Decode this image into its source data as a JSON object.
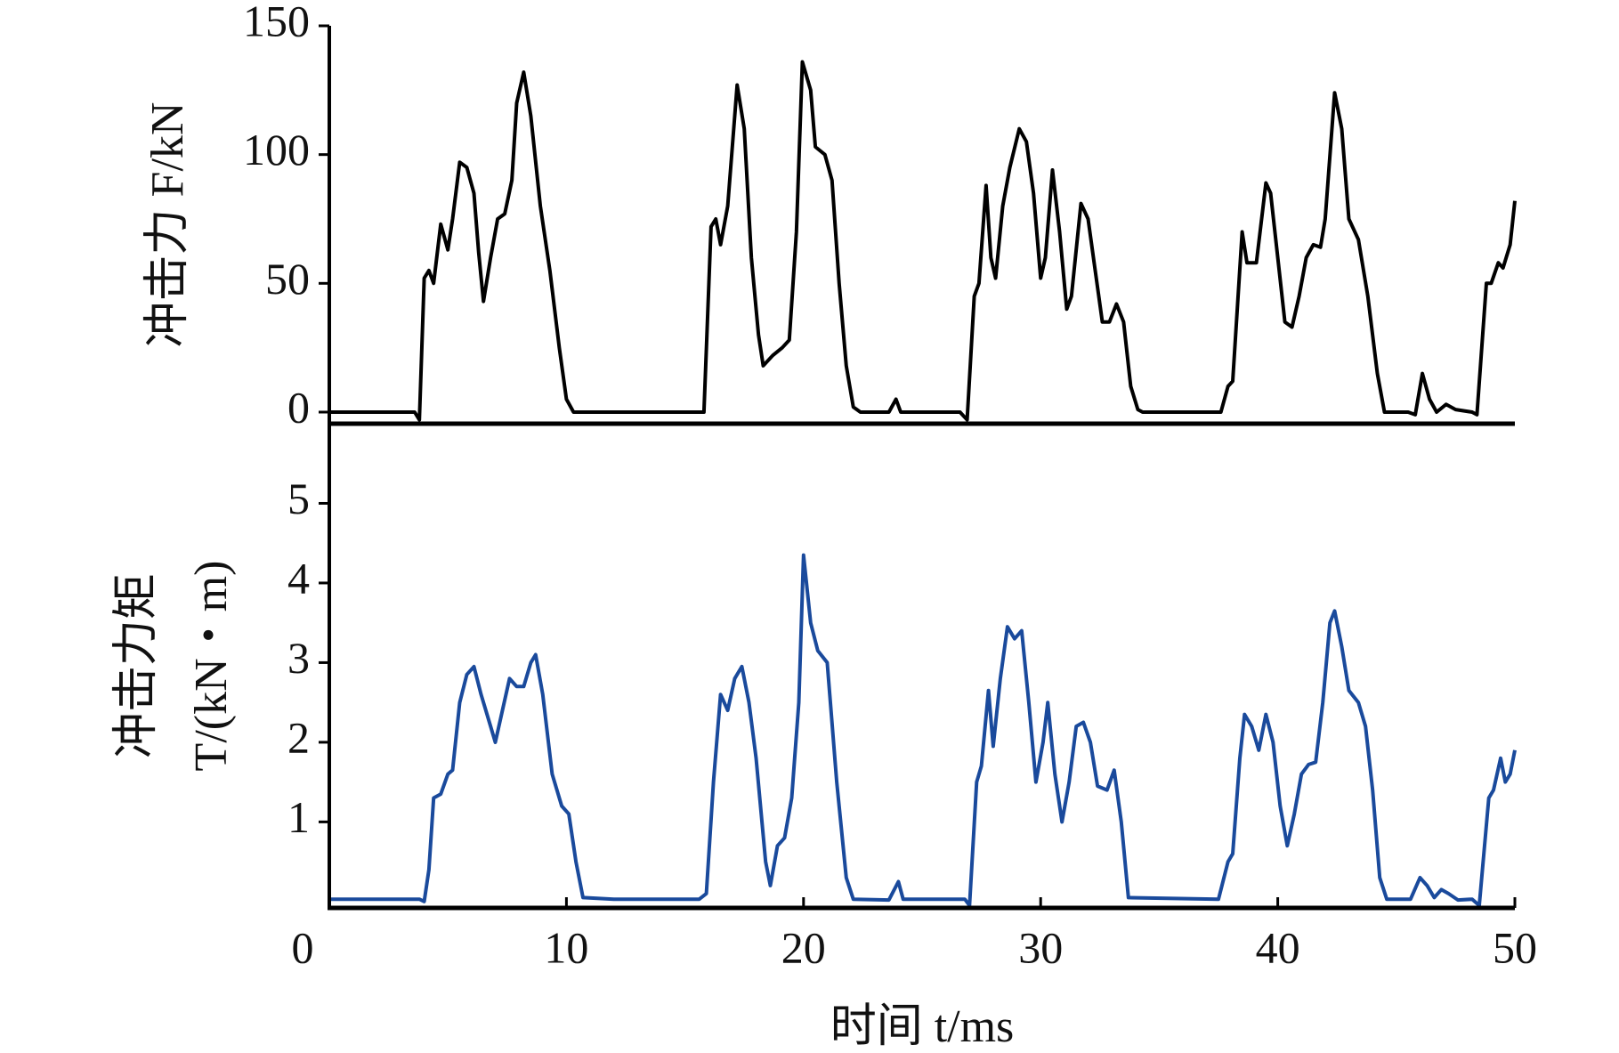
{
  "chart_data": [
    {
      "type": "line",
      "ylabel": "冲击力 F/kN",
      "xlim": [
        0,
        50
      ],
      "ylim": [
        -4.5,
        150
      ],
      "yticks": [
        0,
        50,
        100,
        150
      ],
      "series": [
        {
          "color": "#000000",
          "x": [
            0,
            1,
            2,
            3,
            3.6,
            3.8,
            4.0,
            4.2,
            4.4,
            4.7,
            5.0,
            5.2,
            5.5,
            5.8,
            6.1,
            6.3,
            6.5,
            6.8,
            7.1,
            7.4,
            7.7,
            7.9,
            8.2,
            8.5,
            8.9,
            9.3,
            9.7,
            10.0,
            10.3,
            10.6,
            12,
            14,
            15.5,
            15.8,
            16.1,
            16.3,
            16.5,
            16.8,
            17.2,
            17.5,
            17.8,
            18.1,
            18.3,
            18.7,
            19.1,
            19.4,
            19.7,
            19.95,
            20.3,
            20.5,
            20.9,
            21.2,
            21.5,
            21.8,
            22.1,
            22.4,
            23.6,
            23.9,
            24.1,
            26.6,
            26.9,
            27.2,
            27.4,
            27.7,
            27.9,
            28.1,
            28.4,
            28.7,
            29.1,
            29.4,
            29.7,
            30.0,
            30.2,
            30.5,
            30.8,
            31.1,
            31.3,
            31.7,
            32.0,
            32.3,
            32.6,
            32.9,
            33.2,
            33.5,
            33.8,
            34.1,
            34.3,
            37.6,
            37.9,
            38.1,
            38.5,
            38.7,
            39.1,
            39.5,
            39.7,
            40.0,
            40.3,
            40.6,
            40.9,
            41.2,
            41.5,
            41.8,
            42.0,
            42.4,
            42.7,
            43.0,
            43.4,
            43.8,
            44.2,
            44.5,
            45.5,
            45.8,
            46.1,
            46.4,
            46.7,
            47.1,
            47.5,
            48.2,
            48.4,
            48.8,
            49.0,
            49.3,
            49.5,
            49.8,
            50.0
          ],
          "values": [
            0,
            0,
            0,
            0,
            0,
            -3,
            52,
            55,
            50,
            73,
            63,
            75,
            97,
            95,
            85,
            62,
            43,
            60,
            75,
            77,
            90,
            120,
            132,
            115,
            80,
            55,
            25,
            5,
            0,
            0,
            0,
            0,
            0,
            0,
            72,
            75,
            65,
            80,
            127,
            110,
            60,
            30,
            18,
            22,
            25,
            28,
            70,
            136,
            125,
            103,
            100,
            90,
            50,
            18,
            2,
            0,
            0,
            5,
            0,
            0,
            -3,
            45,
            50,
            88,
            60,
            52,
            80,
            95,
            110,
            105,
            85,
            52,
            60,
            94,
            70,
            40,
            45,
            81,
            75,
            55,
            35,
            35,
            42,
            35,
            10,
            1,
            0,
            0,
            10,
            12,
            70,
            58,
            58,
            89,
            85,
            60,
            35,
            33,
            45,
            60,
            65,
            64,
            75,
            124,
            110,
            75,
            67,
            45,
            15,
            0,
            0,
            -1,
            15,
            5,
            0,
            3,
            1,
            0,
            -1,
            50,
            50,
            58,
            56,
            65,
            82
          ]
        }
      ]
    },
    {
      "type": "line",
      "ylabel": [
        "冲击力矩",
        "T/(kN・m)"
      ],
      "xlabel": "时间 t/ms",
      "xlim": [
        0,
        50
      ],
      "xticks": [
        0,
        10,
        20,
        30,
        40,
        50
      ],
      "ylim": [
        -0.08,
        6
      ],
      "yticks": [
        1,
        2,
        3,
        4,
        5
      ],
      "series": [
        {
          "color": "#1a4a9c",
          "x": [
            0,
            1,
            2,
            3,
            3.8,
            4.0,
            4.2,
            4.4,
            4.7,
            5.0,
            5.2,
            5.5,
            5.8,
            6.1,
            6.4,
            6.8,
            7.0,
            7.3,
            7.6,
            7.9,
            8.2,
            8.5,
            8.7,
            9.0,
            9.4,
            9.8,
            10.1,
            10.4,
            10.7,
            12,
            14,
            15.6,
            15.9,
            16.2,
            16.5,
            16.8,
            17.1,
            17.4,
            17.7,
            18.0,
            18.4,
            18.6,
            18.9,
            19.2,
            19.5,
            19.8,
            20.0,
            20.3,
            20.6,
            21.0,
            21.4,
            21.8,
            22.1,
            23.6,
            24.0,
            24.2,
            26.8,
            27.0,
            27.3,
            27.5,
            27.8,
            28.0,
            28.3,
            28.6,
            28.9,
            29.2,
            29.5,
            29.8,
            30.1,
            30.3,
            30.6,
            30.9,
            31.2,
            31.5,
            31.8,
            32.1,
            32.4,
            32.8,
            33.1,
            33.4,
            33.7,
            37.5,
            37.9,
            38.1,
            38.4,
            38.6,
            38.9,
            39.2,
            39.5,
            39.8,
            40.1,
            40.4,
            40.7,
            41.0,
            41.3,
            41.6,
            41.9,
            42.2,
            42.4,
            42.7,
            43.0,
            43.4,
            43.7,
            44.0,
            44.3,
            44.6,
            45.6,
            46.0,
            46.3,
            46.6,
            46.9,
            47.2,
            47.6,
            48.2,
            48.5,
            48.9,
            49.1,
            49.4,
            49.6,
            49.8,
            50.0
          ],
          "values": [
            0.03,
            0.03,
            0.03,
            0.03,
            0.03,
            0.0,
            0.4,
            1.3,
            1.35,
            1.6,
            1.65,
            2.5,
            2.85,
            2.95,
            2.6,
            2.2,
            2.0,
            2.4,
            2.8,
            2.7,
            2.7,
            3.0,
            3.1,
            2.6,
            1.6,
            1.2,
            1.1,
            0.5,
            0.05,
            0.03,
            0.03,
            0.03,
            0.1,
            1.5,
            2.6,
            2.4,
            2.8,
            2.95,
            2.5,
            1.8,
            0.5,
            0.2,
            0.7,
            0.8,
            1.3,
            2.5,
            4.35,
            3.5,
            3.15,
            3.0,
            1.5,
            0.3,
            0.03,
            0.02,
            0.25,
            0.03,
            0.03,
            -0.05,
            1.5,
            1.7,
            2.65,
            1.95,
            2.8,
            3.45,
            3.3,
            3.4,
            2.5,
            1.5,
            2.0,
            2.5,
            1.6,
            1.0,
            1.5,
            2.2,
            2.25,
            2.0,
            1.45,
            1.4,
            1.65,
            1.0,
            0.05,
            0.03,
            0.5,
            0.6,
            1.8,
            2.35,
            2.2,
            1.9,
            2.35,
            2.0,
            1.2,
            0.7,
            1.1,
            1.6,
            1.72,
            1.75,
            2.5,
            3.5,
            3.65,
            3.2,
            2.65,
            2.5,
            2.2,
            1.4,
            0.3,
            0.03,
            0.03,
            0.3,
            0.2,
            0.05,
            0.15,
            0.1,
            0.02,
            0.03,
            -0.05,
            1.3,
            1.4,
            1.8,
            1.5,
            1.6,
            1.9
          ]
        }
      ]
    }
  ]
}
